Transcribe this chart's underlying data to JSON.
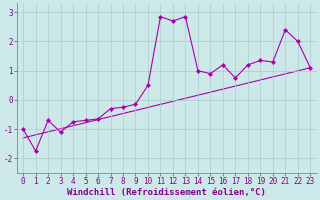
{
  "title": "",
  "xlabel": "Windchill (Refroidissement éolien,°C)",
  "ylabel": "",
  "bg_color": "#cce8e8",
  "line_color": "#aa00aa",
  "x_data": [
    0,
    1,
    2,
    3,
    4,
    5,
    6,
    7,
    8,
    9,
    10,
    11,
    12,
    13,
    14,
    15,
    16,
    17,
    18,
    19,
    20,
    21,
    22,
    23
  ],
  "y_data": [
    -1.0,
    -1.75,
    -0.7,
    -1.1,
    -0.75,
    -0.7,
    -0.65,
    -0.3,
    -0.25,
    -0.15,
    0.5,
    2.85,
    2.7,
    2.85,
    1.0,
    0.9,
    1.2,
    0.75,
    1.2,
    1.35,
    1.3,
    2.4,
    2.0,
    1.1
  ],
  "trend_x": [
    0,
    23
  ],
  "trend_y": [
    -1.3,
    1.1
  ],
  "xlim": [
    -0.5,
    23.5
  ],
  "ylim": [
    -2.5,
    3.3
  ],
  "yticks": [
    -2,
    -1,
    0,
    1,
    2,
    3
  ],
  "xticks": [
    0,
    1,
    2,
    3,
    4,
    5,
    6,
    7,
    8,
    9,
    10,
    11,
    12,
    13,
    14,
    15,
    16,
    17,
    18,
    19,
    20,
    21,
    22,
    23
  ],
  "grid_color": "#aacccc",
  "tick_fontsize": 5.5,
  "xlabel_fontsize": 6.5,
  "marker_size": 2.2,
  "line_width": 0.8
}
